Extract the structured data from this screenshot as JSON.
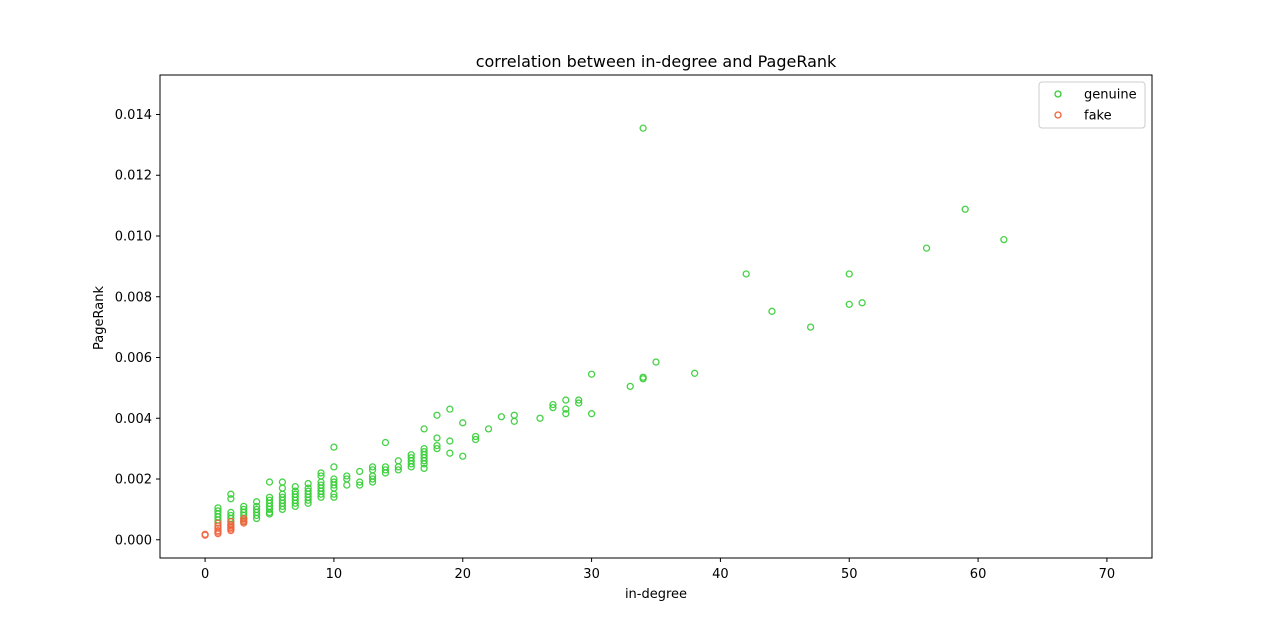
{
  "chart_data": {
    "type": "scatter",
    "title": "correlation between in-degree and PageRank",
    "xlabel": "in-degree",
    "ylabel": "PageRank",
    "xlim": [
      -3.5,
      73.5
    ],
    "ylim": [
      -0.0006,
      0.0153
    ],
    "xticks": [
      0,
      10,
      20,
      30,
      40,
      50,
      60,
      70
    ],
    "yticks": [
      0.0,
      0.002,
      0.004,
      0.006,
      0.008,
      0.01,
      0.012,
      0.014
    ],
    "ytick_labels": [
      "0.000",
      "0.002",
      "0.004",
      "0.006",
      "0.008",
      "0.010",
      "0.012",
      "0.014"
    ],
    "grid": false,
    "legend_position": "top-right",
    "series": [
      {
        "name": "genuine",
        "color": "#32cd32",
        "marker": "hollow-circle",
        "points": [
          [
            1,
            0.00105
          ],
          [
            1,
            0.00095
          ],
          [
            1,
            0.00085
          ],
          [
            1,
            0.00075
          ],
          [
            1,
            0.00065
          ],
          [
            1,
            0.00055
          ],
          [
            2,
            0.0015
          ],
          [
            2,
            0.00135
          ],
          [
            2,
            0.0009
          ],
          [
            2,
            0.0008
          ],
          [
            2,
            0.0007
          ],
          [
            2,
            0.0006
          ],
          [
            2,
            0.0005
          ],
          [
            3,
            0.0011
          ],
          [
            3,
            0.001
          ],
          [
            3,
            0.0009
          ],
          [
            3,
            0.0008
          ],
          [
            3,
            0.0007
          ],
          [
            3,
            0.0006
          ],
          [
            4,
            0.00125
          ],
          [
            4,
            0.0011
          ],
          [
            4,
            0.001
          ],
          [
            4,
            0.0009
          ],
          [
            4,
            0.0008
          ],
          [
            4,
            0.0007
          ],
          [
            5,
            0.0019
          ],
          [
            5,
            0.0014
          ],
          [
            5,
            0.0013
          ],
          [
            5,
            0.0012
          ],
          [
            5,
            0.0011
          ],
          [
            5,
            0.001
          ],
          [
            5,
            0.0009
          ],
          [
            5,
            0.00085
          ],
          [
            6,
            0.0019
          ],
          [
            6,
            0.0017
          ],
          [
            6,
            0.0015
          ],
          [
            6,
            0.0014
          ],
          [
            6,
            0.0013
          ],
          [
            6,
            0.0012
          ],
          [
            6,
            0.0011
          ],
          [
            6,
            0.001
          ],
          [
            7,
            0.00175
          ],
          [
            7,
            0.0016
          ],
          [
            7,
            0.0015
          ],
          [
            7,
            0.0014
          ],
          [
            7,
            0.0013
          ],
          [
            7,
            0.0012
          ],
          [
            7,
            0.0011
          ],
          [
            8,
            0.00185
          ],
          [
            8,
            0.0017
          ],
          [
            8,
            0.0016
          ],
          [
            8,
            0.0015
          ],
          [
            8,
            0.0014
          ],
          [
            8,
            0.0013
          ],
          [
            8,
            0.0012
          ],
          [
            9,
            0.0022
          ],
          [
            9,
            0.0021
          ],
          [
            9,
            0.0019
          ],
          [
            9,
            0.0018
          ],
          [
            9,
            0.0017
          ],
          [
            9,
            0.0016
          ],
          [
            9,
            0.0015
          ],
          [
            9,
            0.0014
          ],
          [
            10,
            0.00305
          ],
          [
            10,
            0.0024
          ],
          [
            10,
            0.002
          ],
          [
            10,
            0.0019
          ],
          [
            10,
            0.0018
          ],
          [
            10,
            0.0017
          ],
          [
            10,
            0.0015
          ],
          [
            10,
            0.0014
          ],
          [
            11,
            0.0021
          ],
          [
            11,
            0.002
          ],
          [
            11,
            0.0018
          ],
          [
            12,
            0.00225
          ],
          [
            12,
            0.0019
          ],
          [
            12,
            0.0018
          ],
          [
            13,
            0.0024
          ],
          [
            13,
            0.0023
          ],
          [
            13,
            0.0021
          ],
          [
            13,
            0.002
          ],
          [
            13,
            0.0019
          ],
          [
            14,
            0.0032
          ],
          [
            14,
            0.0024
          ],
          [
            14,
            0.0023
          ],
          [
            14,
            0.0022
          ],
          [
            15,
            0.0026
          ],
          [
            15,
            0.0024
          ],
          [
            15,
            0.0023
          ],
          [
            16,
            0.0028
          ],
          [
            16,
            0.0027
          ],
          [
            16,
            0.0026
          ],
          [
            16,
            0.0025
          ],
          [
            16,
            0.0024
          ],
          [
            17,
            0.00365
          ],
          [
            17,
            0.003
          ],
          [
            17,
            0.0029
          ],
          [
            17,
            0.0028
          ],
          [
            17,
            0.0027
          ],
          [
            17,
            0.0026
          ],
          [
            17,
            0.0025
          ],
          [
            17,
            0.00235
          ],
          [
            18,
            0.0041
          ],
          [
            18,
            0.00335
          ],
          [
            18,
            0.0031
          ],
          [
            18,
            0.003
          ],
          [
            19,
            0.0043
          ],
          [
            19,
            0.00325
          ],
          [
            19,
            0.00285
          ],
          [
            20,
            0.00385
          ],
          [
            20,
            0.00275
          ],
          [
            21,
            0.0034
          ],
          [
            21,
            0.0033
          ],
          [
            22,
            0.00365
          ],
          [
            23,
            0.00405
          ],
          [
            24,
            0.0041
          ],
          [
            24,
            0.0039
          ],
          [
            26,
            0.004
          ],
          [
            27,
            0.00445
          ],
          [
            27,
            0.00435
          ],
          [
            28,
            0.0046
          ],
          [
            28,
            0.0043
          ],
          [
            28,
            0.00415
          ],
          [
            29,
            0.0046
          ],
          [
            29,
            0.0045
          ],
          [
            30,
            0.00545
          ],
          [
            30,
            0.00415
          ],
          [
            33,
            0.00505
          ],
          [
            34,
            0.01355
          ],
          [
            34,
            0.00535
          ],
          [
            34,
            0.0053
          ],
          [
            35,
            0.00585
          ],
          [
            38,
            0.00548
          ],
          [
            42,
            0.00875
          ],
          [
            44,
            0.00752
          ],
          [
            47,
            0.007
          ],
          [
            50,
            0.00875
          ],
          [
            50,
            0.00775
          ],
          [
            51,
            0.0078
          ],
          [
            56,
            0.0096
          ],
          [
            59,
            0.01088
          ],
          [
            62,
            0.00988
          ]
        ]
      },
      {
        "name": "fake",
        "color": "#f2623c",
        "marker": "hollow-circle",
        "points": [
          [
            0,
            0.00018
          ],
          [
            0,
            0.00015
          ],
          [
            1,
            0.00055
          ],
          [
            1,
            0.00045
          ],
          [
            1,
            0.00038
          ],
          [
            1,
            0.0003
          ],
          [
            1,
            0.00025
          ],
          [
            1,
            0.0002
          ],
          [
            2,
            0.0006
          ],
          [
            2,
            0.0005
          ],
          [
            2,
            0.00045
          ],
          [
            2,
            0.0004
          ],
          [
            2,
            0.00035
          ],
          [
            2,
            0.0003
          ],
          [
            3,
            0.0007
          ],
          [
            3,
            0.00065
          ],
          [
            3,
            0.0006
          ],
          [
            3,
            0.00055
          ]
        ]
      }
    ]
  }
}
